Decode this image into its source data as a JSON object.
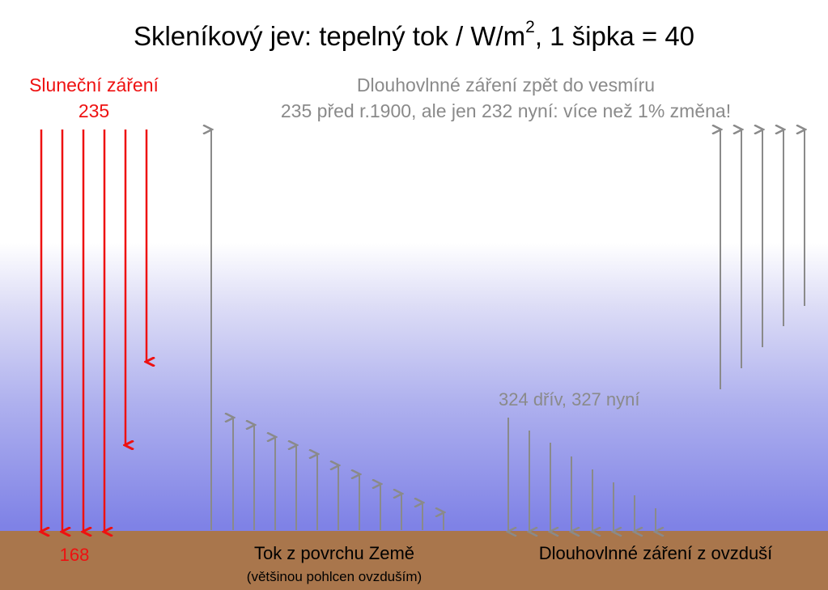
{
  "title": {
    "main": "Skleníkový jev: tepelný tok / W/m",
    "sup": "2",
    "rest": ", 1 šipka = 40"
  },
  "solar": {
    "label": "Sluneční záření",
    "value": "235",
    "absorbed": "168"
  },
  "outgoing": {
    "line1": "Dlouhovlnné záření zpět do vesmíru",
    "line2": "235 před r.1900, ale jen 232 nyní: více než 1% změna!"
  },
  "back": {
    "label": "324 dřív, 327 nyní"
  },
  "surface": {
    "label": "Tok z povrchu Země",
    "sub": "(většinou pohlcen ovzduším)"
  },
  "atmosphere": {
    "label": "Dlouhovlnné záření z ovzduší"
  },
  "colors": {
    "solar": "#ee1111",
    "grey": "#8a8a8a",
    "ground": "#a9764c",
    "sky_bottom": "#7f82e6"
  },
  "arrows": {
    "solar_down": [
      1,
      1,
      1,
      1,
      0.38,
      0.63
    ],
    "outgoing_up": [
      1
    ],
    "surface_up": [
      1,
      1,
      1,
      1,
      1,
      1,
      1,
      1,
      1,
      1,
      1
    ],
    "back_down": [
      1,
      1,
      1,
      1,
      1,
      1,
      1,
      1
    ],
    "space_up": [
      1,
      1,
      1,
      1,
      1
    ]
  }
}
